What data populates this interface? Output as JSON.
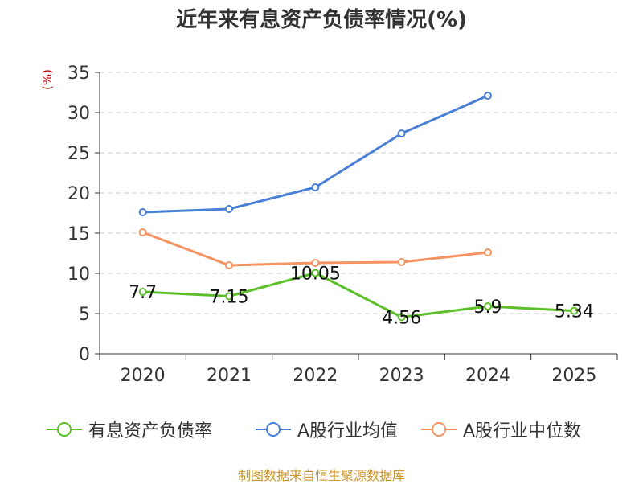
{
  "colors": {
    "series1": "#5cbf2a",
    "series2": "#4a7fd6",
    "series3": "#f49462",
    "grid": "#cccccc",
    "axis": "#333333",
    "source": "#c8962c",
    "unit": "#cc0000"
  },
  "chart_data": {
    "type": "line",
    "title": "近年来有息资产负债率情况(%)",
    "ylabel": "(%)",
    "ylim": [
      0,
      35
    ],
    "yticks": [
      0,
      5,
      10,
      15,
      20,
      25,
      30,
      35
    ],
    "categories": [
      "2020",
      "2021",
      "2022",
      "2023",
      "2024",
      "2025"
    ],
    "grid": true,
    "legend_position": "bottom",
    "series": [
      {
        "name": "有息资产负债率",
        "values": [
          7.7,
          7.15,
          10.05,
          4.56,
          5.9,
          5.34
        ],
        "labels": [
          "7.7",
          "7.15",
          "10.05",
          "4.56",
          "5.9",
          "5.34"
        ]
      },
      {
        "name": "A股行业均值",
        "values": [
          17.6,
          18.0,
          20.7,
          27.4,
          32.1,
          null
        ]
      },
      {
        "name": "A股行业中位数",
        "values": [
          15.1,
          11.0,
          11.3,
          11.4,
          12.6,
          null
        ]
      }
    ]
  },
  "source": "制图数据来自恒生聚源数据库"
}
